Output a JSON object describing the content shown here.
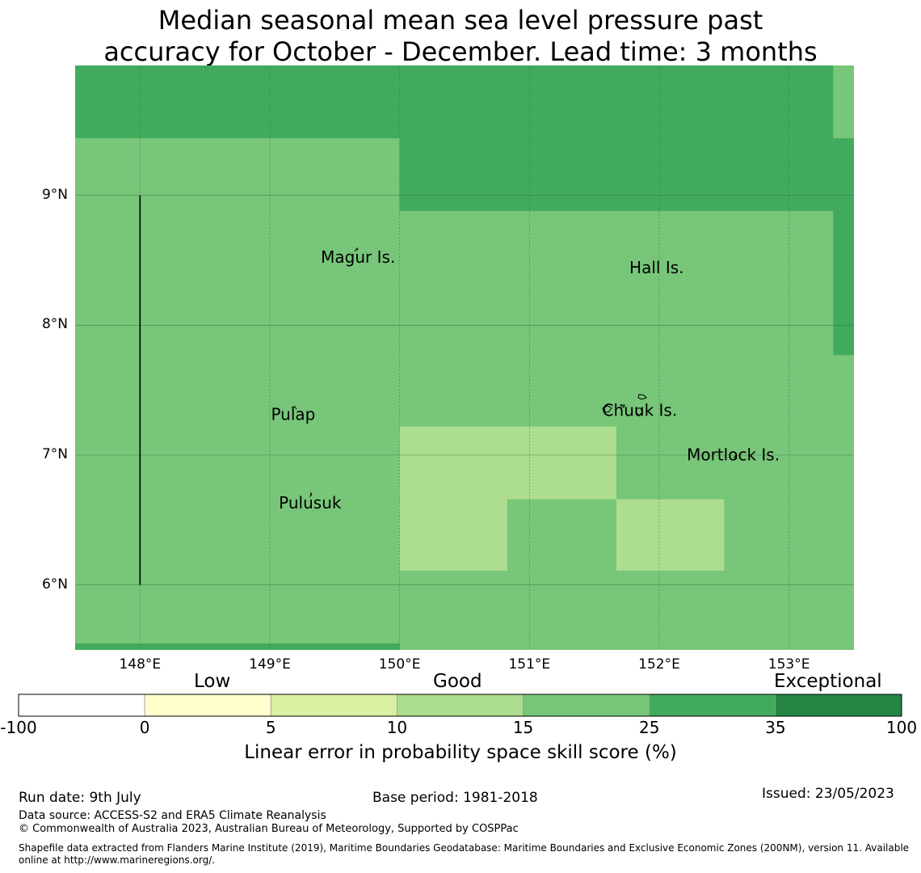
{
  "title_line1": "Median seasonal mean sea level pressure past",
  "title_line2": "accuracy for October - December. Lead time: 3 months",
  "map": {
    "lon_range": [
      147.5,
      153.5
    ],
    "lat_range": [
      5.5,
      10.0
    ],
    "lat_ticks": [
      {
        "value": 6,
        "label": "6°N"
      },
      {
        "value": 7,
        "label": "7°N"
      },
      {
        "value": 8,
        "label": "8°N"
      },
      {
        "value": 9,
        "label": "9°N"
      }
    ],
    "lon_ticks": [
      {
        "value": 148,
        "label": "148°E"
      },
      {
        "value": 149,
        "label": "149°E"
      },
      {
        "value": 150,
        "label": "150°E"
      },
      {
        "value": 151,
        "label": "151°E"
      },
      {
        "value": 152,
        "label": "152°E"
      },
      {
        "value": 153,
        "label": "153°E"
      }
    ],
    "background_category": "15-25",
    "regions": [
      {
        "category": "25-35",
        "lon": [
          147.5,
          150.0
        ],
        "lat": [
          9.44,
          10.0
        ]
      },
      {
        "category": "25-35",
        "lon": [
          150.0,
          153.34
        ],
        "lat": [
          8.88,
          10.0
        ]
      },
      {
        "category": "25-35",
        "lon": [
          153.34,
          153.5
        ],
        "lat": [
          7.77,
          9.44
        ]
      },
      {
        "category": "25-35",
        "lon": [
          147.5,
          150.0
        ],
        "lat": [
          5.5,
          5.55
        ]
      },
      {
        "category": "10-15",
        "lon": [
          150.0,
          151.67
        ],
        "lat": [
          6.66,
          7.22
        ]
      },
      {
        "category": "10-15",
        "lon": [
          150.0,
          150.83
        ],
        "lat": [
          6.11,
          6.66
        ]
      },
      {
        "category": "10-15",
        "lon": [
          151.67,
          152.5
        ],
        "lat": [
          6.11,
          6.66
        ]
      }
    ],
    "boundary_line": {
      "lon": 148.0,
      "lat": [
        6.0,
        9.0
      ]
    },
    "islands": [
      {
        "name": "Magur Is.",
        "lon": 149.68,
        "lat": 8.58
      },
      {
        "name": "Hall Is.",
        "lon": 151.98,
        "lat": 8.5
      },
      {
        "name": "Pulap",
        "lon": 149.18,
        "lat": 7.37
      },
      {
        "name": "Chuuk Is.",
        "lon": 151.85,
        "lat": 7.4
      },
      {
        "name": "Mortlock Is.",
        "lon": 152.57,
        "lat": 7.06
      },
      {
        "name": "Pulusuk",
        "lon": 149.31,
        "lat": 6.69
      }
    ]
  },
  "colorbar": {
    "categories": [
      {
        "key": "-100-0",
        "color": "#ffffff"
      },
      {
        "key": "0-5",
        "color": "#ffffcc"
      },
      {
        "key": "5-10",
        "color": "#d9f0a3"
      },
      {
        "key": "10-15",
        "color": "#addd8e"
      },
      {
        "key": "15-25",
        "color": "#78c679"
      },
      {
        "key": "25-35",
        "color": "#41ab5d"
      },
      {
        "key": "35-100",
        "color": "#238443"
      }
    ],
    "ticks": [
      "-100",
      "0",
      "5",
      "10",
      "15",
      "25",
      "35",
      "100"
    ],
    "low_label": "Low",
    "good_label": "Good",
    "exceptional_label": "Exceptional",
    "axis_label": "Linear error in probability space skill score (%)"
  },
  "footer": {
    "run_date": "Run date: 9th July",
    "base_period": "Base period: 1981-2018",
    "issued": "Issued: 23/05/2023",
    "data_source": "Data source: ACCESS-S2 and ERA5 Climate Reanalysis",
    "copyright": "© Commonwealth of Australia 2023, Australian Bureau of Meteorology, Supported by COSPPac",
    "shapefile_line1": "Shapefile data extracted from Flanders Marine Institute (2019), Maritime Boundaries Geodatabase: Maritime Boundaries and Exclusive Economic Zones (200NM), version 11. Available",
    "shapefile_line2": "online at http://www.marineregions.org/."
  }
}
